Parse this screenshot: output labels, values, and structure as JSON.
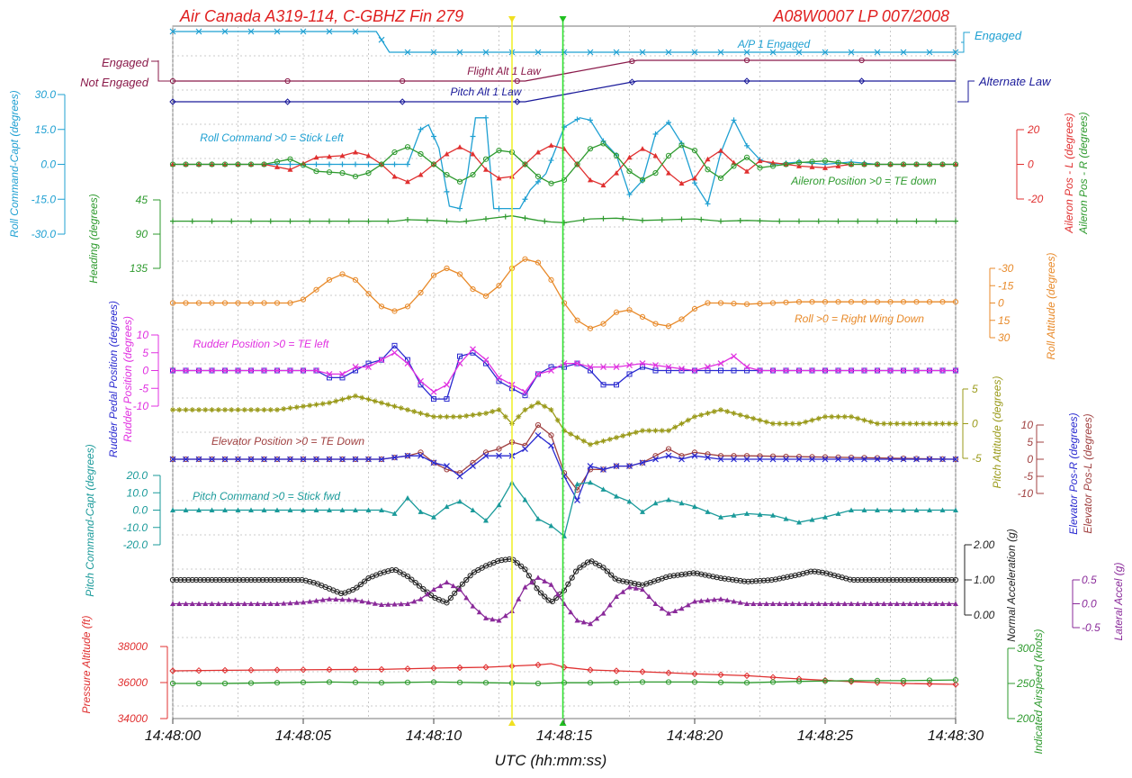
{
  "header": {
    "title_left": "Air Canada A319-114, C-GBHZ  Fin 279",
    "title_right": "A08W0007  LP 007/2008"
  },
  "x_axis": {
    "label": "UTC (hh:mm:ss)",
    "ticks": [
      "14:48:00",
      "14:48:05",
      "14:48:10",
      "14:48:15",
      "14:48:20",
      "14:48:25",
      "14:48:30"
    ]
  },
  "cursors": {
    "yellow_t": 13.0,
    "green_t": 14.95
  },
  "chart_data": [
    {
      "type": "line",
      "name": "A/P 1 Engaged",
      "states": [
        "Engaged"
      ],
      "x": [
        0,
        7.8,
        8.3,
        30
      ],
      "values": [
        1,
        1,
        0,
        0
      ],
      "color": "#1fa0d2"
    },
    {
      "type": "line",
      "name": "Flight Alt 1 Law",
      "states": [
        "Engaged",
        "Not Engaged"
      ],
      "x": [
        0,
        13.5,
        17.8,
        30
      ],
      "values": [
        0,
        0,
        1,
        1
      ],
      "color": "#8a1a4a"
    },
    {
      "type": "line",
      "name": "Pitch Alt 1 Law",
      "states": [
        "Alternate Law"
      ],
      "x": [
        0,
        13.5,
        17.8,
        30
      ],
      "values": [
        0,
        0,
        1,
        1
      ],
      "color": "#1a1a9a"
    },
    {
      "type": "line",
      "title": "Roll Command >0 = Stick Left",
      "ylabel": "Roll Command-Capt (degrees)",
      "yticks": [
        "30.0",
        "15.0",
        "0.0",
        "-15.0",
        "-30.0"
      ],
      "ylim": [
        -30,
        30
      ],
      "x": [
        0,
        9.0,
        9.5,
        9.8,
        10.2,
        10.6,
        11.0,
        11.3,
        11.6,
        12.0,
        12.3,
        12.8,
        13.3,
        13.7,
        14.3,
        15.0,
        15.6,
        16.0,
        16.5,
        17.0,
        17.5,
        18.0,
        18.5,
        19.0,
        19.5,
        20.0,
        20.5,
        21.0,
        21.5,
        22.0,
        22.5,
        23.0,
        24.0,
        25.0,
        26.0,
        27.0,
        30.0
      ],
      "values": [
        0,
        0,
        15,
        17,
        7,
        -18,
        -19,
        -4,
        20,
        20,
        -19,
        -19,
        -19,
        -11,
        -4,
        16,
        20,
        19,
        10,
        4,
        -13,
        -7,
        13,
        18,
        9,
        -8,
        -17,
        5,
        19,
        8,
        2,
        0,
        1,
        0,
        1,
        0,
        0
      ],
      "color": "#1fa0d2"
    },
    {
      "type": "line",
      "name": "Aileron Pos - L (degrees)",
      "yticks": [
        "20",
        "0",
        "-20"
      ],
      "ylim": [
        -20,
        20
      ],
      "x": [
        0,
        3.5,
        4.5,
        5.5,
        6.5,
        7.0,
        7.5,
        8.0,
        8.5,
        9.0,
        9.5,
        10.0,
        10.5,
        11.0,
        11.5,
        12.0,
        12.5,
        13.0,
        13.5,
        14.0,
        14.5,
        15.0,
        15.5,
        16.0,
        16.5,
        17.0,
        17.5,
        18.0,
        18.5,
        19.0,
        19.5,
        20.0,
        20.5,
        21.0,
        21.5,
        22.0,
        22.5,
        23.0,
        24.0,
        25.0,
        26.0,
        27.0,
        30.0
      ],
      "values": [
        0,
        0,
        -3,
        4,
        5,
        7,
        5,
        0,
        -7,
        -10,
        -6,
        0,
        6,
        10,
        6,
        -3,
        -8,
        -7,
        0,
        7,
        11,
        9,
        0,
        -9,
        -12,
        -5,
        4,
        9,
        5,
        -5,
        -11,
        -8,
        3,
        8,
        1,
        -4,
        2,
        1,
        -1,
        -2,
        0,
        0,
        0
      ],
      "color": "#e03030"
    },
    {
      "type": "line",
      "title": "Aileron Position >0 = TE down",
      "ylabel": "Aileron Pos - R (degrees)",
      "x": [
        0,
        3.5,
        4.5,
        5.5,
        6.5,
        7.0,
        7.5,
        8.0,
        8.5,
        9.0,
        9.5,
        10.0,
        10.5,
        11.0,
        11.5,
        12.0,
        12.5,
        13.0,
        13.5,
        14.0,
        14.5,
        15.0,
        15.5,
        16.0,
        16.5,
        17.0,
        17.5,
        18.0,
        18.5,
        19.0,
        19.5,
        20.0,
        20.5,
        21.0,
        21.5,
        22.0,
        22.5,
        23.0,
        24.0,
        25.0,
        26.0,
        27.0,
        30.0
      ],
      "values": [
        0,
        0,
        3,
        -4,
        -5,
        -7,
        -5,
        0,
        7,
        10,
        6,
        0,
        -6,
        -10,
        -6,
        3,
        8,
        7,
        0,
        -7,
        -11,
        -9,
        0,
        9,
        12,
        5,
        -4,
        -9,
        -5,
        5,
        11,
        8,
        -3,
        -8,
        -1,
        4,
        -2,
        -1,
        1,
        2,
        0,
        0,
        0
      ],
      "color": "#2e9a2e"
    },
    {
      "type": "line",
      "ylabel": "Heading (degrees)",
      "yticks": [
        "45",
        "90",
        "135"
      ],
      "ylim": [
        45,
        135
      ],
      "x": [
        0,
        8.5,
        9.0,
        10.0,
        11.0,
        12.0,
        13.0,
        14.0,
        14.5,
        15.0,
        16.0,
        17.0,
        18.0,
        19.0,
        20.0,
        21.0,
        22.0,
        23.0,
        25.0,
        30.0
      ],
      "values": [
        73,
        73,
        71,
        72,
        74,
        70,
        66,
        72,
        74,
        75,
        70,
        69,
        72,
        71,
        70,
        73,
        72,
        73,
        73,
        73
      ],
      "color": "#2e9a2e"
    },
    {
      "type": "line",
      "title": "Roll >0 = Right Wing Down",
      "ylabel": "Roll Attitude (degrees)",
      "yticks": [
        "-30",
        "-15",
        "0",
        "15",
        "30"
      ],
      "ylim": [
        -30,
        30
      ],
      "x": [
        0,
        4.0,
        4.5,
        5.0,
        6.0,
        6.5,
        7.0,
        7.5,
        8.0,
        8.5,
        9.0,
        9.5,
        10.0,
        10.5,
        11.0,
        11.5,
        12.0,
        12.5,
        13.0,
        13.5,
        14.0,
        14.5,
        15.0,
        15.5,
        16.0,
        16.5,
        17.0,
        17.5,
        18.0,
        18.5,
        19.0,
        19.5,
        20.0,
        20.5,
        21.0,
        22.0,
        23.0,
        24.0,
        26.0,
        28.0,
        30.0
      ],
      "values": [
        0,
        0,
        0,
        -3,
        -20,
        -25,
        -20,
        -8,
        3,
        7,
        3,
        -9,
        -24,
        -30,
        -25,
        -12,
        -6,
        -15,
        -30,
        -38,
        -35,
        -20,
        0,
        15,
        22,
        18,
        8,
        6,
        12,
        18,
        20,
        14,
        5,
        0,
        0,
        1,
        0,
        -1,
        -1,
        -1,
        -1
      ],
      "color": "#e88a2a"
    },
    {
      "type": "line",
      "name": "Rudder Pedal Position (degrees)",
      "ylabel": "Rudder Pedal Position (degrees)",
      "yticks": [
        "10",
        "5",
        "0",
        "-5",
        "-10"
      ],
      "ylim": [
        -10,
        10
      ],
      "x": [
        0,
        5.0,
        5.5,
        6.0,
        6.5,
        7.0,
        7.5,
        8.0,
        8.5,
        9.0,
        9.5,
        10.0,
        10.5,
        11.0,
        11.5,
        12.0,
        12.5,
        13.0,
        13.5,
        14.0,
        14.5,
        15.0,
        15.5,
        16.0,
        16.5,
        17.0,
        17.5,
        18.0,
        18.5,
        19.0,
        20.0,
        22.0,
        24.0,
        30.0
      ],
      "values": [
        0,
        0,
        0,
        -2,
        -2,
        0,
        2,
        3,
        7,
        3,
        -4,
        -8,
        -8,
        4,
        5,
        2,
        -3,
        -5,
        -7,
        -1,
        1,
        1,
        2,
        0,
        -4,
        -4,
        -1,
        1,
        0,
        0,
        0,
        0,
        0,
        0
      ],
      "color": "#2a2ad0"
    },
    {
      "type": "line",
      "title": "Rudder Position >0 = TE left",
      "ylabel": "Rudder Position (degrees)",
      "x": [
        0,
        5.0,
        5.5,
        6.0,
        6.5,
        7.0,
        7.5,
        8.0,
        8.5,
        9.0,
        9.5,
        10.0,
        10.5,
        11.0,
        11.5,
        12.0,
        12.5,
        13.0,
        13.5,
        14.0,
        14.5,
        15.0,
        15.5,
        16.0,
        17.0,
        18.0,
        19.0,
        20.0,
        21.0,
        21.5,
        22.0,
        22.5,
        23.0,
        24.0,
        30.0
      ],
      "values": [
        0,
        0,
        0,
        -1,
        -1,
        1,
        1,
        3,
        5,
        2,
        -3,
        -6,
        -4,
        2,
        6,
        3,
        -2,
        -4,
        -6,
        -1,
        0,
        2,
        2,
        1,
        1,
        2,
        1,
        0,
        2,
        4,
        1,
        0,
        0,
        0,
        0
      ],
      "color": "#e030e0"
    },
    {
      "type": "line",
      "ylabel": "Pitch Attitude (degrees)",
      "yticks": [
        "5",
        "0",
        "-5"
      ],
      "ylim": [
        -5,
        5
      ],
      "x": [
        0,
        4.0,
        5.0,
        6.0,
        7.0,
        8.0,
        9.0,
        10.0,
        11.0,
        12.0,
        12.5,
        13.0,
        13.5,
        14.0,
        14.5,
        15.0,
        16.0,
        17.0,
        18.0,
        19.0,
        20.0,
        21.0,
        22.0,
        23.0,
        24.0,
        25.0,
        26.0,
        27.0,
        30.0
      ],
      "values": [
        2,
        2,
        2.5,
        3,
        4,
        3,
        2,
        1,
        1,
        1.5,
        2,
        0,
        2,
        3,
        2,
        -1,
        -3,
        -2,
        -1,
        -1,
        1,
        2,
        1,
        0,
        0,
        1,
        1,
        0,
        0
      ],
      "color": "#9a9a1a"
    },
    {
      "type": "line",
      "name": "Elevator Pos-L (degrees)",
      "title": "Elevator Position >0 = TE Down",
      "yticks": [
        "10",
        "5",
        "0",
        "-5",
        "-10"
      ],
      "ylim": [
        -10,
        10
      ],
      "x": [
        0,
        8.0,
        9.0,
        9.5,
        10.0,
        10.5,
        11.0,
        11.5,
        12.0,
        12.5,
        13.0,
        13.5,
        14.0,
        14.5,
        15.0,
        15.5,
        16.0,
        16.5,
        17.0,
        17.5,
        18.0,
        18.5,
        19.0,
        19.5,
        20.0,
        21.0,
        22.0,
        30.0
      ],
      "values": [
        0,
        0,
        1,
        2,
        -1,
        -3,
        -4,
        -1,
        2,
        3,
        5,
        4,
        10,
        7,
        -4,
        -9,
        -3,
        -3,
        -2,
        -2,
        -1,
        1,
        3,
        1,
        2,
        1,
        1,
        0
      ],
      "color": "#a04040"
    },
    {
      "type": "line",
      "name": "Elevator Pos-R (degrees)",
      "x": [
        0,
        8.0,
        9.0,
        9.5,
        10.0,
        10.5,
        11.0,
        11.5,
        12.0,
        12.5,
        13.0,
        13.5,
        14.0,
        14.5,
        15.0,
        15.5,
        16.0,
        16.5,
        17.0,
        17.5,
        18.0,
        18.5,
        19.0,
        19.5,
        20.0,
        21.0,
        22.0,
        30.0
      ],
      "values": [
        0,
        0,
        1,
        1,
        -1,
        -2,
        -5,
        -2,
        1,
        1,
        1,
        3,
        7,
        4,
        -5,
        -12,
        -2,
        -3,
        -2,
        -2,
        -1,
        0,
        1,
        0,
        1,
        0,
        0,
        0
      ],
      "color": "#2a2ad0"
    },
    {
      "type": "line",
      "title": "Pitch Command >0 = Stick fwd",
      "ylabel": "Pitch Command-Capt (degrees)",
      "yticks": [
        "20.0",
        "10.0",
        "0.0",
        "-10.0",
        "-20.0"
      ],
      "ylim": [
        -20,
        20
      ],
      "x": [
        0,
        7.0,
        7.5,
        8.0,
        8.5,
        9.0,
        9.5,
        10.0,
        10.5,
        11.0,
        11.5,
        12.0,
        12.5,
        13.0,
        13.5,
        14.0,
        14.5,
        15.0,
        15.5,
        16.0,
        16.5,
        17.0,
        17.5,
        18.0,
        18.5,
        19.0,
        20.0,
        21.0,
        22.0,
        23.0,
        24.0,
        25.0,
        26.0,
        30.0
      ],
      "values": [
        0,
        0,
        0,
        0,
        -2,
        7,
        -1,
        -4,
        2,
        5,
        0,
        -6,
        3,
        16,
        6,
        -5,
        -9,
        -15,
        15,
        16,
        12,
        8,
        5,
        -1,
        4,
        6,
        2,
        -4,
        -2,
        -3,
        -7,
        -4,
        0,
        0
      ],
      "color": "#1a9a9a"
    },
    {
      "type": "line",
      "ylabel": "Normal Acceleration (g)",
      "yticks": [
        "2.00",
        "1.00",
        "0.00"
      ],
      "ylim": [
        -0.1,
        2.0
      ],
      "x": [
        0,
        4.0,
        5.0,
        5.5,
        6.0,
        6.5,
        7.0,
        7.5,
        8.0,
        8.5,
        9.0,
        9.5,
        10.0,
        10.5,
        11.0,
        11.5,
        12.0,
        12.5,
        13.0,
        13.5,
        14.0,
        14.5,
        15.0,
        15.5,
        16.0,
        16.5,
        17.0,
        18.0,
        19.0,
        20.0,
        21.0,
        22.0,
        23.0,
        24.0,
        24.5,
        25.0,
        26.0,
        30.0
      ],
      "values": [
        1.0,
        1.0,
        1.0,
        0.9,
        0.75,
        0.6,
        0.75,
        1.05,
        1.2,
        1.3,
        1.1,
        0.8,
        0.5,
        0.35,
        0.8,
        1.2,
        1.4,
        1.55,
        1.6,
        1.3,
        0.7,
        0.35,
        0.7,
        1.3,
        1.55,
        1.35,
        1.0,
        0.85,
        1.1,
        1.2,
        1.05,
        0.95,
        1.0,
        1.15,
        1.25,
        1.2,
        1.0,
        1.0
      ],
      "color": "#222222"
    },
    {
      "type": "line",
      "ylabel": "Lateral Accel (g)",
      "yticks": [
        "0.5",
        "0.0",
        "-0.5"
      ],
      "ylim": [
        -0.5,
        0.5
      ],
      "x": [
        0,
        4.0,
        5.0,
        6.0,
        7.0,
        8.0,
        9.0,
        9.5,
        10.0,
        10.5,
        11.0,
        11.5,
        12.0,
        12.5,
        13.0,
        13.5,
        14.0,
        14.5,
        15.0,
        15.5,
        16.0,
        16.5,
        17.0,
        17.5,
        18.0,
        18.5,
        19.0,
        19.5,
        20.0,
        21.0,
        22.0,
        23.0,
        24.0,
        30.0
      ],
      "values": [
        0,
        0,
        0.03,
        0.1,
        0.08,
        -0.02,
        0,
        0.1,
        0.3,
        0.45,
        0.3,
        -0.05,
        -0.3,
        -0.35,
        -0.15,
        0.35,
        0.55,
        0.4,
        0,
        -0.35,
        -0.42,
        -0.2,
        0.15,
        0.35,
        0.3,
        0,
        -0.2,
        -0.1,
        0.05,
        0.1,
        0,
        0,
        0,
        0
      ],
      "color": "#8a2a9a"
    },
    {
      "type": "line",
      "ylabel": "Pressure Altitude (ft)",
      "yticks": [
        "38000",
        "36000",
        "34000"
      ],
      "ylim": [
        34000,
        38000
      ],
      "x": [
        0,
        2,
        4,
        6,
        8,
        10,
        12,
        14,
        14.5,
        15,
        16,
        18,
        20,
        22,
        24,
        26,
        28,
        30
      ],
      "values": [
        36650,
        36680,
        36700,
        36720,
        36730,
        36800,
        36850,
        36980,
        37050,
        36850,
        36700,
        36600,
        36480,
        36380,
        36200,
        36050,
        35950,
        35900
      ],
      "color": "#e03030"
    },
    {
      "type": "line",
      "ylabel": "Indicated Airspeed (knots)",
      "yticks": [
        "300",
        "250",
        "200"
      ],
      "ylim": [
        200,
        300
      ],
      "x": [
        0,
        2,
        4,
        6,
        8,
        10,
        12,
        14,
        15,
        16,
        18,
        20,
        22,
        24,
        26,
        28,
        30
      ],
      "values": [
        250,
        250,
        251,
        252,
        251,
        252,
        251,
        250,
        251,
        251,
        252,
        252,
        251,
        253,
        254,
        254,
        255
      ],
      "color": "#2e9a2e"
    }
  ]
}
